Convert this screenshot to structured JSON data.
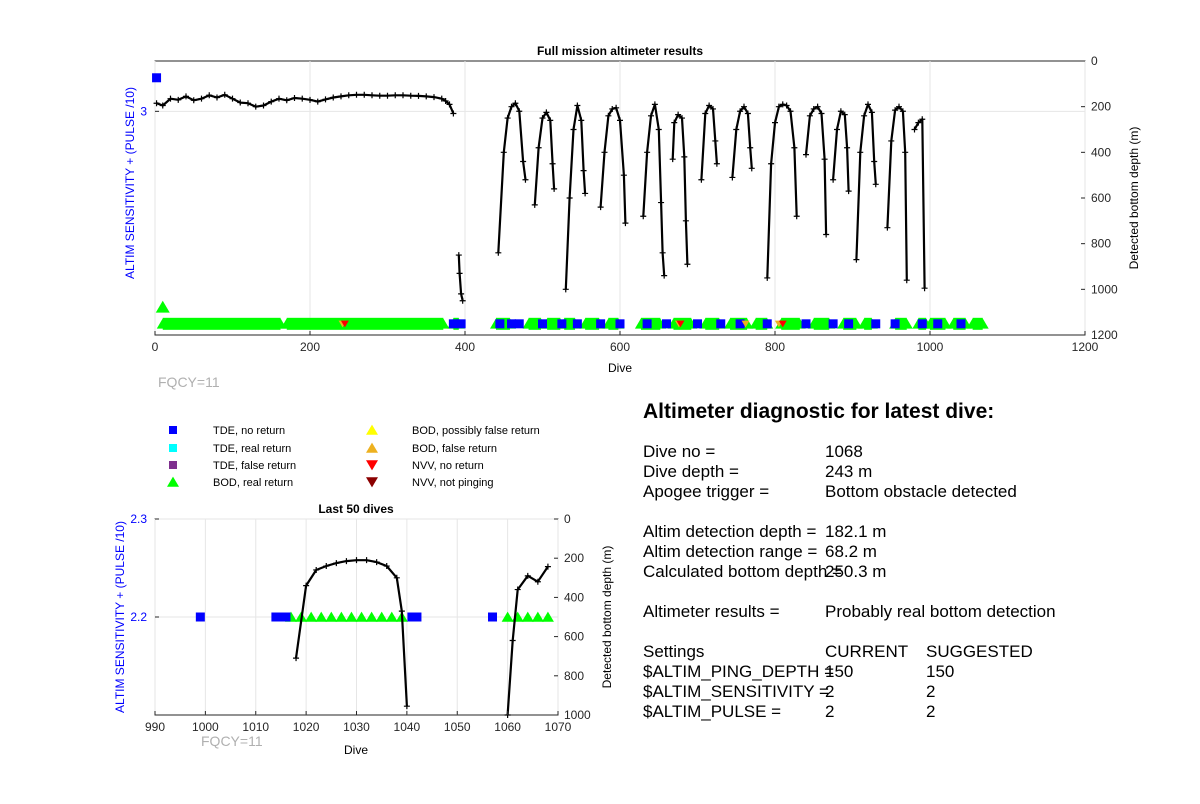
{
  "chart_data": [
    {
      "type": "scatter",
      "title": "Full mission altimeter results",
      "xlabel": "Dive",
      "ylabel_left": "ALTIM SENSITIVITY + (PULSE /10)",
      "ylabel_right": "Detected bottom depth (m)",
      "xlim": [
        0,
        1200
      ],
      "ylim_left": [
        1,
        3.45
      ],
      "ylim_right": [
        0,
        1200
      ],
      "x_ticks": [
        "0",
        "200",
        "400",
        "600",
        "800",
        "1000",
        "1200"
      ],
      "y_left_ticks": [
        "3"
      ],
      "y_right_ticks": [
        "0",
        "200",
        "400",
        "600",
        "800",
        "1000",
        "1200"
      ],
      "grid": true,
      "fqcy_label": "FQCY=11",
      "tde_no_return": [
        {
          "x": 2,
          "y": 3.3
        },
        {
          "x": 385,
          "y": 1.1
        },
        {
          "x": 395,
          "y": 1.1
        },
        {
          "x": 445,
          "y": 1.1
        },
        {
          "x": 460,
          "y": 1.1
        },
        {
          "x": 470,
          "y": 1.1
        },
        {
          "x": 500,
          "y": 1.1
        },
        {
          "x": 525,
          "y": 1.1
        },
        {
          "x": 545,
          "y": 1.1
        },
        {
          "x": 575,
          "y": 1.1
        },
        {
          "x": 600,
          "y": 1.1
        },
        {
          "x": 635,
          "y": 1.1
        },
        {
          "x": 660,
          "y": 1.1
        },
        {
          "x": 700,
          "y": 1.1
        },
        {
          "x": 730,
          "y": 1.1
        },
        {
          "x": 755,
          "y": 1.1
        },
        {
          "x": 790,
          "y": 1.1
        },
        {
          "x": 840,
          "y": 1.1
        },
        {
          "x": 875,
          "y": 1.1
        },
        {
          "x": 895,
          "y": 1.1
        },
        {
          "x": 930,
          "y": 1.1
        },
        {
          "x": 955,
          "y": 1.1
        },
        {
          "x": 990,
          "y": 1.1
        },
        {
          "x": 1010,
          "y": 1.1
        },
        {
          "x": 1040,
          "y": 1.1
        }
      ],
      "bod_real_return_runs": [
        [
          10,
          162
        ],
        [
          170,
          372
        ],
        [
          385,
          392
        ],
        [
          440,
          458
        ],
        [
          482,
          498
        ],
        [
          506,
          523
        ],
        [
          528,
          542
        ],
        [
          555,
          573
        ],
        [
          585,
          598
        ],
        [
          627,
          652
        ],
        [
          669,
          692
        ],
        [
          710,
          728
        ],
        [
          742,
          764
        ],
        [
          775,
          790
        ],
        [
          808,
          832
        ],
        [
          850,
          870
        ],
        [
          888,
          905
        ],
        [
          915,
          925
        ],
        [
          955,
          970
        ],
        [
          985,
          995
        ],
        [
          1000,
          1020
        ],
        [
          1030,
          1046
        ],
        [
          1055,
          1068
        ]
      ],
      "bod_extra_points": [
        {
          "x": 10,
          "y": 1.25
        }
      ],
      "nvv_no_return": [
        {
          "x": 245,
          "y": 1.1
        },
        {
          "x": 678,
          "y": 1.1
        },
        {
          "x": 810,
          "y": 1.1
        }
      ],
      "bod_false_return": [
        {
          "x": 242,
          "y": 1.1
        },
        {
          "x": 676,
          "y": 1.1
        },
        {
          "x": 762,
          "y": 1.1
        },
        {
          "x": 805,
          "y": 1.1
        }
      ],
      "depth_segments": [
        [
          [
            2,
            185
          ],
          [
            10,
            195
          ],
          [
            20,
            165
          ],
          [
            30,
            170
          ],
          [
            40,
            155
          ],
          [
            50,
            172
          ],
          [
            60,
            165
          ],
          [
            70,
            150
          ],
          [
            80,
            160
          ],
          [
            90,
            148
          ],
          [
            100,
            165
          ],
          [
            110,
            182
          ],
          [
            120,
            185
          ],
          [
            130,
            200
          ],
          [
            140,
            195
          ],
          [
            150,
            178
          ],
          [
            160,
            165
          ],
          [
            170,
            172
          ],
          [
            180,
            162
          ],
          [
            190,
            165
          ],
          [
            200,
            170
          ],
          [
            210,
            178
          ],
          [
            220,
            168
          ],
          [
            230,
            160
          ],
          [
            240,
            155
          ],
          [
            250,
            150
          ],
          [
            260,
            148
          ],
          [
            270,
            148
          ],
          [
            280,
            150
          ],
          [
            290,
            152
          ],
          [
            300,
            152
          ],
          [
            310,
            150
          ],
          [
            320,
            150
          ],
          [
            330,
            152
          ],
          [
            340,
            153
          ],
          [
            350,
            155
          ],
          [
            360,
            158
          ],
          [
            370,
            165
          ],
          [
            375,
            175
          ],
          [
            380,
            190
          ],
          [
            385,
            230
          ]
        ],
        [
          [
            392,
            850
          ],
          [
            393,
            930
          ],
          [
            395,
            1020
          ],
          [
            397,
            1050
          ]
        ],
        [
          [
            443,
            840
          ],
          [
            450,
            400
          ],
          [
            455,
            250
          ],
          [
            460,
            200
          ],
          [
            465,
            185
          ],
          [
            470,
            220
          ],
          [
            475,
            440
          ],
          [
            478,
            520
          ]
        ],
        [
          [
            490,
            630
          ],
          [
            495,
            380
          ],
          [
            500,
            250
          ],
          [
            505,
            225
          ],
          [
            510,
            260
          ],
          [
            513,
            450
          ],
          [
            515,
            560
          ]
        ],
        [
          [
            530,
            1000
          ],
          [
            535,
            600
          ],
          [
            540,
            300
          ],
          [
            545,
            195
          ],
          [
            550,
            260
          ],
          [
            553,
            480
          ],
          [
            555,
            580
          ]
        ],
        [
          [
            575,
            640
          ],
          [
            580,
            400
          ],
          [
            585,
            240
          ],
          [
            590,
            210
          ],
          [
            595,
            205
          ],
          [
            600,
            260
          ],
          [
            605,
            500
          ],
          [
            607,
            710
          ]
        ],
        [
          [
            630,
            680
          ],
          [
            635,
            400
          ],
          [
            640,
            240
          ],
          [
            645,
            190
          ],
          [
            650,
            300
          ],
          [
            653,
            620
          ],
          [
            655,
            840
          ],
          [
            657,
            940
          ]
        ],
        [
          [
            668,
            430
          ],
          [
            670,
            270
          ],
          [
            675,
            235
          ],
          [
            680,
            250
          ],
          [
            683,
            420
          ],
          [
            685,
            700
          ],
          [
            687,
            890
          ]
        ],
        [
          [
            705,
            520
          ],
          [
            710,
            230
          ],
          [
            715,
            195
          ],
          [
            720,
            210
          ],
          [
            723,
            350
          ],
          [
            725,
            450
          ]
        ],
        [
          [
            745,
            510
          ],
          [
            750,
            300
          ],
          [
            755,
            220
          ],
          [
            760,
            200
          ],
          [
            765,
            230
          ],
          [
            768,
            380
          ],
          [
            770,
            470
          ]
        ],
        [
          [
            790,
            950
          ],
          [
            795,
            450
          ],
          [
            800,
            270
          ],
          [
            805,
            200
          ],
          [
            810,
            190
          ],
          [
            815,
            195
          ],
          [
            820,
            220
          ],
          [
            825,
            380
          ],
          [
            828,
            680
          ]
        ],
        [
          [
            840,
            410
          ],
          [
            845,
            240
          ],
          [
            850,
            210
          ],
          [
            855,
            200
          ],
          [
            860,
            230
          ],
          [
            864,
            430
          ],
          [
            866,
            760
          ]
        ],
        [
          [
            875,
            520
          ],
          [
            880,
            300
          ],
          [
            885,
            220
          ],
          [
            890,
            235
          ],
          [
            893,
            380
          ],
          [
            895,
            570
          ]
        ],
        [
          [
            905,
            870
          ],
          [
            910,
            400
          ],
          [
            915,
            240
          ],
          [
            920,
            190
          ],
          [
            925,
            225
          ],
          [
            928,
            440
          ],
          [
            930,
            540
          ]
        ],
        [
          [
            945,
            730
          ],
          [
            950,
            350
          ],
          [
            955,
            215
          ],
          [
            960,
            200
          ],
          [
            965,
            220
          ],
          [
            968,
            400
          ],
          [
            970,
            960
          ]
        ],
        [
          [
            980,
            300
          ],
          [
            985,
            270
          ],
          [
            990,
            255
          ],
          [
            993,
            995
          ]
        ]
      ]
    },
    {
      "type": "scatter",
      "title": "Last 50 dives",
      "xlabel": "Dive",
      "ylabel_left": "ALTIM SENSITIVITY + (PULSE /10)",
      "ylabel_right": "Detected bottom depth (m)",
      "xlim": [
        990,
        1070
      ],
      "ylim_left": [
        2.1,
        2.3
      ],
      "ylim_right": [
        0,
        1000
      ],
      "x_ticks": [
        "990",
        "1000",
        "1010",
        "1020",
        "1030",
        "1040",
        "1050",
        "1060",
        "1070"
      ],
      "y_left_ticks": [
        "2.3",
        "2.2"
      ],
      "y_right_ticks": [
        "0",
        "200",
        "400",
        "600",
        "800",
        "1000"
      ],
      "grid": true,
      "fqcy_label": "FQCY=11",
      "tde_no_return": [
        {
          "x": 999,
          "y": 2.2
        },
        {
          "x": 1014,
          "y": 2.2
        },
        {
          "x": 1015,
          "y": 2.2
        },
        {
          "x": 1016,
          "y": 2.2
        },
        {
          "x": 1041,
          "y": 2.2
        },
        {
          "x": 1042,
          "y": 2.2
        },
        {
          "x": 1057,
          "y": 2.2
        }
      ],
      "bod_real_return": [
        {
          "x": 1017,
          "y": 2.2
        },
        {
          "x": 1019,
          "y": 2.2
        },
        {
          "x": 1021,
          "y": 2.2
        },
        {
          "x": 1023,
          "y": 2.2
        },
        {
          "x": 1025,
          "y": 2.2
        },
        {
          "x": 1027,
          "y": 2.2
        },
        {
          "x": 1029,
          "y": 2.2
        },
        {
          "x": 1031,
          "y": 2.2
        },
        {
          "x": 1033,
          "y": 2.2
        },
        {
          "x": 1035,
          "y": 2.2
        },
        {
          "x": 1037,
          "y": 2.2
        },
        {
          "x": 1039,
          "y": 2.2
        },
        {
          "x": 1060,
          "y": 2.2
        },
        {
          "x": 1062,
          "y": 2.2
        },
        {
          "x": 1064,
          "y": 2.2
        },
        {
          "x": 1066,
          "y": 2.2
        },
        {
          "x": 1068,
          "y": 2.2
        }
      ],
      "depth_segments": [
        [
          [
            1018,
            710
          ],
          [
            1020,
            340
          ],
          [
            1022,
            260
          ],
          [
            1024,
            240
          ],
          [
            1026,
            225
          ],
          [
            1028,
            215
          ],
          [
            1030,
            210
          ],
          [
            1032,
            210
          ],
          [
            1034,
            220
          ],
          [
            1036,
            240
          ],
          [
            1038,
            300
          ],
          [
            1039,
            470
          ],
          [
            1040,
            955
          ]
        ],
        [
          [
            1060,
            1000
          ],
          [
            1061,
            620
          ],
          [
            1062,
            360
          ],
          [
            1064,
            290
          ],
          [
            1066,
            320
          ],
          [
            1068,
            243
          ]
        ]
      ]
    }
  ],
  "legend": {
    "items": [
      {
        "label": "TDE, no return",
        "color": "#0000ff",
        "marker": "square"
      },
      {
        "label": "TDE, real return",
        "color": "#00ffff",
        "marker": "square"
      },
      {
        "label": "TDE, false return",
        "color": "#7e2f8e",
        "marker": "square"
      },
      {
        "label": "BOD, real return",
        "color": "#00ff00",
        "marker": "triangle-up"
      },
      {
        "label": "BOD, possibly false return",
        "color": "#ffff00",
        "marker": "triangle-up"
      },
      {
        "label": "BOD, false return",
        "color": "#edb120",
        "marker": "triangle-up"
      },
      {
        "label": "NVV, no return",
        "color": "#ff0000",
        "marker": "triangle-down"
      },
      {
        "label": "NVV, not pinging",
        "color": "#8b0000",
        "marker": "triangle-down"
      }
    ]
  },
  "diagnostic": {
    "title": "Altimeter diagnostic for latest dive:",
    "dive_no_label": "Dive no =",
    "dive_no_value": "1068",
    "dive_depth_label": "Dive depth =",
    "dive_depth_value": "243 m",
    "apogee_label": "Apogee trigger =",
    "apogee_value": "Bottom obstacle detected",
    "detection_depth_label": "Altim detection depth =",
    "detection_depth_value": "182.1 m",
    "detection_range_label": "Altim detection range =",
    "detection_range_value": "68.2 m",
    "calc_bottom_label": "Calculated bottom depth =",
    "calc_bottom_value": "250.3 m",
    "results_label": "Altimeter results =",
    "results_value": "Probably real bottom detection",
    "settings_label": "Settings",
    "current_header": "CURRENT",
    "suggested_header": "SUGGESTED",
    "ping_depth_label": "$ALTIM_PING_DEPTH =",
    "ping_depth_current": "150",
    "ping_depth_suggested": "150",
    "sensitivity_label": "$ALTIM_SENSITIVITY =",
    "sensitivity_current": "2",
    "sensitivity_suggested": "2",
    "pulse_label": "$ALTIM_PULSE =",
    "pulse_current": "2",
    "pulse_suggested": "2"
  }
}
